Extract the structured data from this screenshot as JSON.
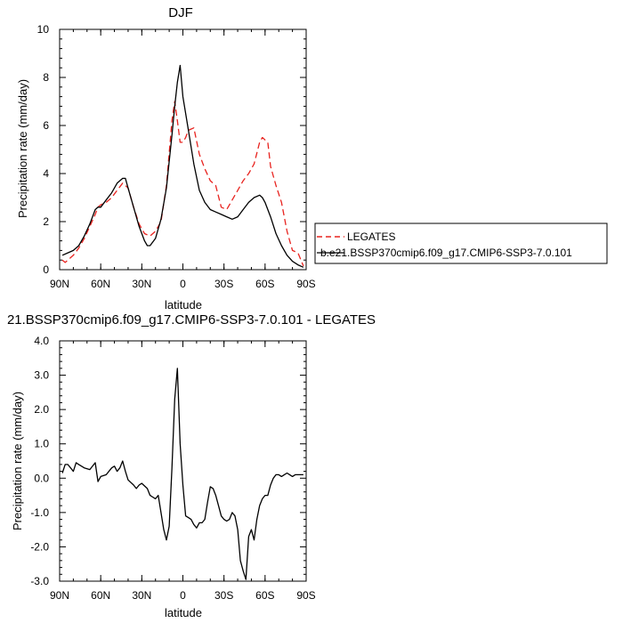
{
  "chart_data": [
    {
      "type": "line",
      "title": "DJF",
      "xlabel": "latitude",
      "ylabel": "Precipitation rate (mm/day)",
      "xlim": [
        90,
        -90
      ],
      "ylim": [
        0,
        10
      ],
      "xticks": [
        90,
        60,
        30,
        0,
        -30,
        -60,
        -90
      ],
      "xtick_labels": [
        "90N",
        "60N",
        "30N",
        "0",
        "30S",
        "60S",
        "90S"
      ],
      "yticks": [
        0,
        2,
        4,
        6,
        8,
        10
      ],
      "ytick_labels": [
        "0",
        "2",
        "4",
        "6",
        "8",
        "10"
      ],
      "legend_position": "right",
      "series": [
        {
          "name": "LEGATES",
          "color": "#e8231f",
          "dash": "dashed",
          "x": [
            88,
            86,
            84,
            80,
            76,
            72,
            68,
            64,
            62,
            60,
            56,
            52,
            48,
            44,
            40,
            36,
            32,
            28,
            24,
            20,
            16,
            12,
            8,
            6,
            4,
            2,
            0,
            -2,
            -4,
            -8,
            -12,
            -16,
            -20,
            -24,
            -28,
            -32,
            -36,
            -40,
            -44,
            -48,
            -52,
            -56,
            -58,
            -60,
            -62,
            -64,
            -68,
            -72,
            -76,
            -80,
            -84,
            -88
          ],
          "values": [
            0.4,
            0.3,
            0.4,
            0.6,
            0.9,
            1.3,
            1.8,
            2.3,
            2.6,
            2.7,
            2.8,
            3.0,
            3.3,
            3.6,
            3.4,
            2.6,
            1.9,
            1.5,
            1.4,
            1.6,
            2.0,
            3.5,
            6.2,
            7.0,
            6.2,
            5.3,
            5.3,
            5.5,
            5.8,
            5.9,
            4.8,
            4.2,
            3.7,
            3.5,
            2.6,
            2.5,
            2.9,
            3.3,
            3.7,
            4.0,
            4.4,
            5.3,
            5.5,
            5.4,
            5.3,
            4.3,
            3.5,
            2.8,
            1.6,
            0.8,
            0.7,
            0.15
          ]
        },
        {
          "name": "b.e21.BSSP370cmip6.f09_g17.CMIP6-SSP3-7.0.101",
          "color": "#000000",
          "dash": "solid",
          "x": [
            88,
            84,
            80,
            76,
            72,
            68,
            64,
            62,
            60,
            56,
            52,
            48,
            44,
            42,
            40,
            36,
            32,
            28,
            26,
            24,
            20,
            16,
            12,
            8,
            6,
            4,
            2,
            0,
            -4,
            -8,
            -12,
            -16,
            -20,
            -24,
            -28,
            -32,
            -36,
            -40,
            -44,
            -48,
            -52,
            -56,
            -58,
            -60,
            -64,
            -68,
            -72,
            -76,
            -80,
            -84,
            -88
          ],
          "values": [
            0.6,
            0.7,
            0.8,
            1.0,
            1.4,
            1.9,
            2.5,
            2.6,
            2.6,
            2.9,
            3.2,
            3.6,
            3.8,
            3.8,
            3.4,
            2.6,
            1.8,
            1.2,
            1.0,
            1.0,
            1.3,
            2.1,
            3.4,
            5.6,
            6.8,
            7.8,
            8.5,
            7.2,
            5.8,
            4.4,
            3.3,
            2.8,
            2.5,
            2.4,
            2.3,
            2.2,
            2.1,
            2.2,
            2.5,
            2.8,
            3.0,
            3.1,
            3.0,
            2.8,
            2.2,
            1.5,
            1.0,
            0.6,
            0.35,
            0.2,
            0.1
          ]
        }
      ]
    },
    {
      "type": "line",
      "title": "21.BSSP370cmip6.f09_g17.CMIP6-SSP3-7.0.101 - LEGATES",
      "xlabel": "latitude",
      "ylabel": "Precipitation rate (mm/day)",
      "xlim": [
        90,
        -90
      ],
      "ylim": [
        -3.0,
        4.0
      ],
      "xticks": [
        90,
        60,
        30,
        0,
        -30,
        -60,
        -90
      ],
      "xtick_labels": [
        "90N",
        "60N",
        "30N",
        "0",
        "30S",
        "60S",
        "90S"
      ],
      "yticks": [
        -3,
        -2,
        -1,
        0,
        1,
        2,
        3,
        4
      ],
      "ytick_labels": [
        "-3.0",
        "-2.0",
        "-1.0",
        "0.0",
        "1.0",
        "2.0",
        "3.0",
        "4.0"
      ],
      "series": [
        {
          "color": "#000000",
          "dash": "solid",
          "x": [
            88,
            86,
            84,
            82,
            80,
            78,
            76,
            72,
            68,
            64,
            62,
            60,
            56,
            52,
            50,
            48,
            46,
            44,
            42,
            40,
            36,
            34,
            32,
            30,
            26,
            24,
            22,
            20,
            18,
            16,
            14,
            12,
            10,
            8,
            6,
            4,
            2,
            0,
            -2,
            -4,
            -6,
            -8,
            -10,
            -12,
            -14,
            -16,
            -18,
            -20,
            -22,
            -24,
            -26,
            -28,
            -30,
            -32,
            -34,
            -36,
            -38,
            -40,
            -42,
            -44,
            -46,
            -48,
            -50,
            -52,
            -54,
            -56,
            -58,
            -60,
            -62,
            -64,
            -66,
            -68,
            -70,
            -72,
            -74,
            -76,
            -78,
            -80,
            -82,
            -84,
            -86,
            -88
          ],
          "values": [
            0.15,
            0.4,
            0.4,
            0.3,
            0.2,
            0.45,
            0.4,
            0.3,
            0.25,
            0.45,
            -0.1,
            0.05,
            0.1,
            0.3,
            0.35,
            0.2,
            0.3,
            0.5,
            0.2,
            -0.05,
            -0.2,
            -0.3,
            -0.2,
            -0.15,
            -0.3,
            -0.5,
            -0.55,
            -0.6,
            -0.5,
            -1.0,
            -1.5,
            -1.8,
            -1.4,
            0.3,
            2.3,
            3.2,
            1.0,
            -0.2,
            -1.1,
            -1.15,
            -1.2,
            -1.35,
            -1.45,
            -1.3,
            -1.3,
            -1.2,
            -0.7,
            -0.25,
            -0.3,
            -0.5,
            -0.8,
            -1.1,
            -1.2,
            -1.25,
            -1.2,
            -1.0,
            -1.1,
            -1.5,
            -2.4,
            -2.7,
            -2.95,
            -1.7,
            -1.5,
            -1.8,
            -1.2,
            -0.8,
            -0.6,
            -0.5,
            -0.5,
            -0.2,
            0.0,
            0.1,
            0.1,
            0.05,
            0.1,
            0.15,
            0.1,
            0.05,
            0.1,
            0.1,
            0.1,
            0.1
          ]
        }
      ]
    }
  ]
}
